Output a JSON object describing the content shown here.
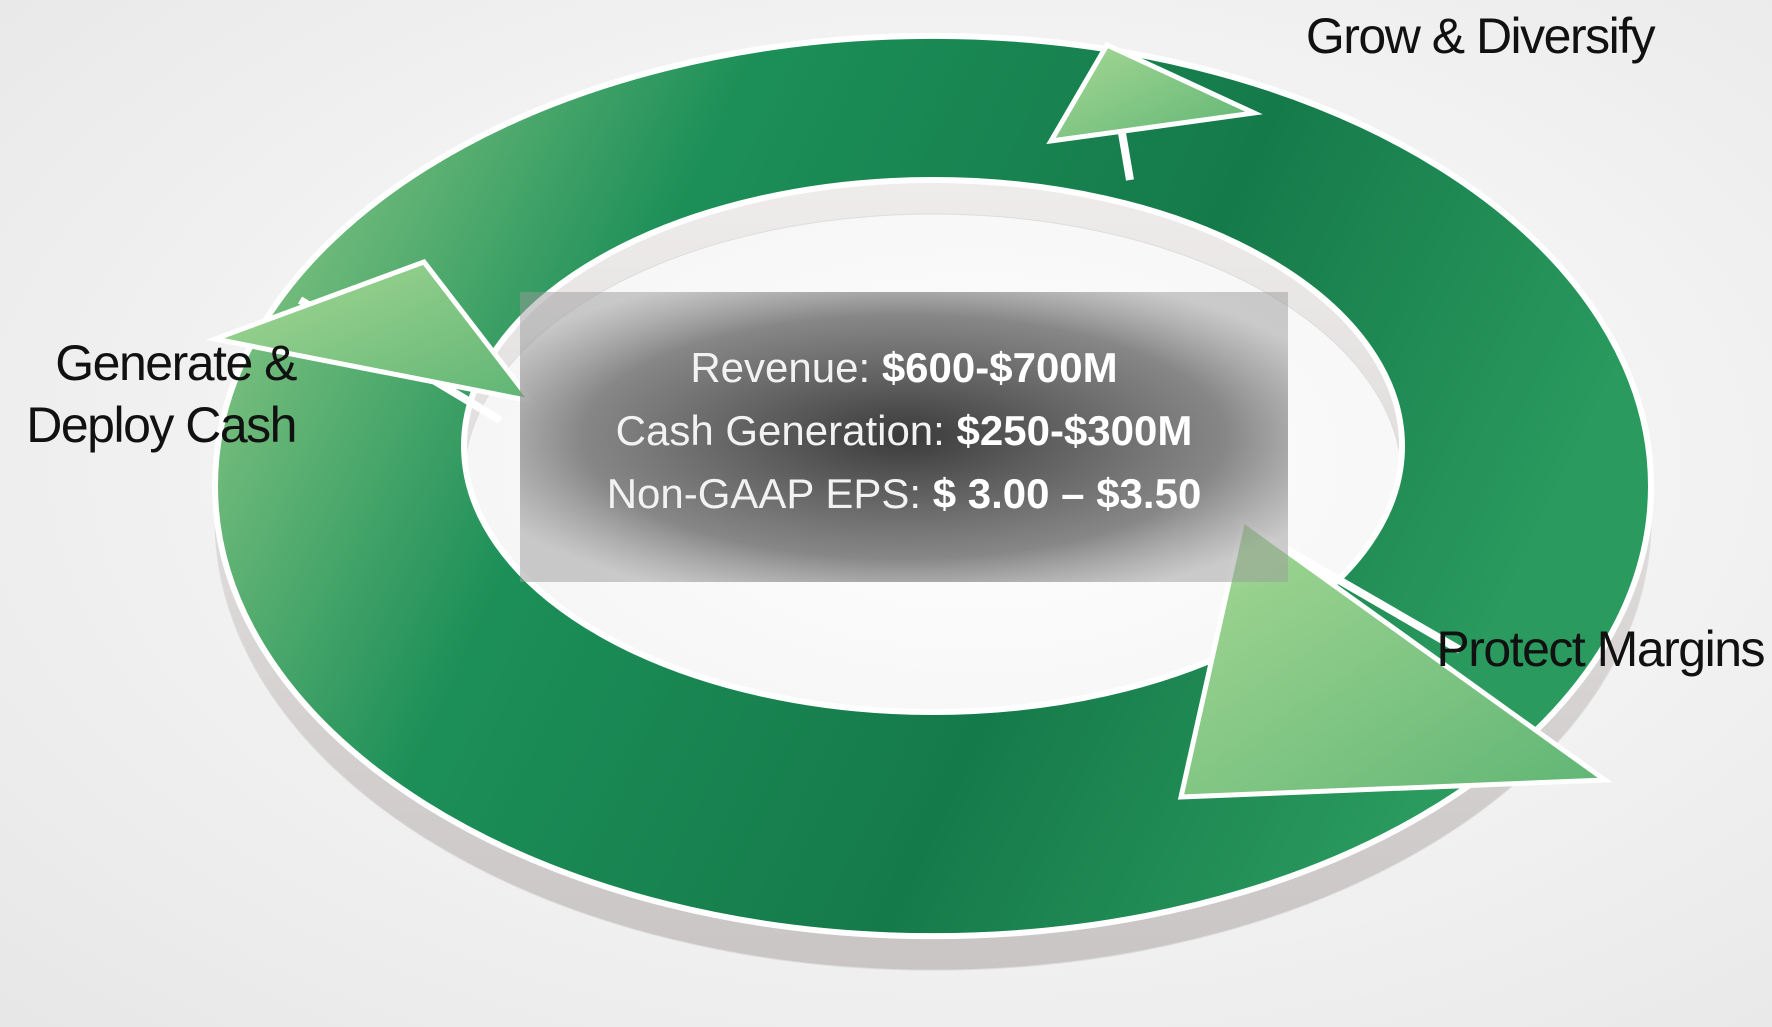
{
  "stages": [
    {
      "lines": [
        "Grow & Diversify"
      ]
    },
    {
      "lines": [
        "Protect Margins"
      ]
    },
    {
      "lines": [
        "Generate &",
        "Deploy Cash"
      ]
    }
  ],
  "metrics": [
    {
      "label": "Revenue:",
      "value": "$600-$700M"
    },
    {
      "label": "Cash Generation:",
      "value": "$250-$300M"
    },
    {
      "label": "Non-GAAP EPS:",
      "value": "$ 3.00 – $3.50"
    }
  ]
}
